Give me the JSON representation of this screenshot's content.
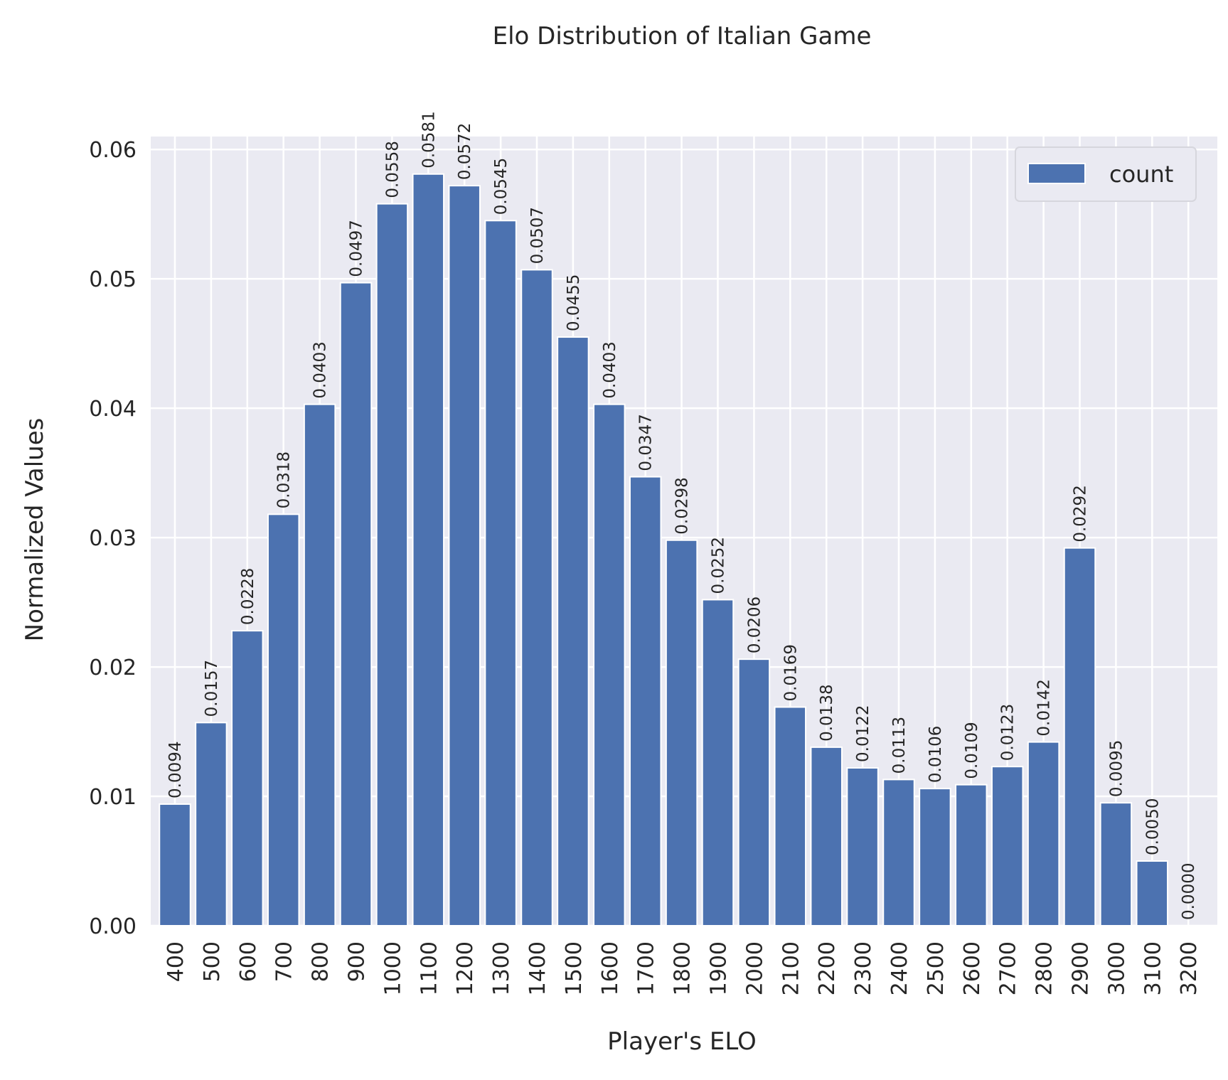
{
  "chart_data": {
    "type": "bar",
    "title": "Elo Distribution of Italian Game",
    "xlabel": "Player's ELO",
    "ylabel": "Normalized Values",
    "categories": [
      "400",
      "500",
      "600",
      "700",
      "800",
      "900",
      "1000",
      "1100",
      "1200",
      "1300",
      "1400",
      "1500",
      "1600",
      "1700",
      "1800",
      "1900",
      "2000",
      "2100",
      "2200",
      "2300",
      "2400",
      "2500",
      "2600",
      "2700",
      "2800",
      "2900",
      "3000",
      "3100",
      "3200"
    ],
    "series": [
      {
        "name": "count",
        "values": [
          0.0094,
          0.0157,
          0.0228,
          0.0318,
          0.0403,
          0.0497,
          0.0558,
          0.0581,
          0.0572,
          0.0545,
          0.0507,
          0.0455,
          0.0403,
          0.0347,
          0.0298,
          0.0252,
          0.0206,
          0.0169,
          0.0138,
          0.0122,
          0.0113,
          0.0106,
          0.0109,
          0.0123,
          0.0142,
          0.0292,
          0.0095,
          0.005,
          0.0
        ],
        "labels": [
          "0.0094",
          "0.0157",
          "0.0228",
          "0.0318",
          "0.0403",
          "0.0497",
          "0.0558",
          "0.0581",
          "0.0572",
          "0.0545",
          "0.0507",
          "0.0455",
          "0.0403",
          "0.0347",
          "0.0298",
          "0.0252",
          "0.0206",
          "0.0169",
          "0.0138",
          "0.0122",
          "0.0113",
          "0.0106",
          "0.0109",
          "0.0123",
          "0.0142",
          "0.0292",
          "0.0095",
          "0.0050",
          "0.0000"
        ]
      }
    ],
    "ylim": [
      0,
      0.061
    ],
    "yticks": [
      0.0,
      0.01,
      0.02,
      0.03,
      0.04,
      0.05,
      0.06
    ],
    "ytick_labels": [
      "0.00",
      "0.01",
      "0.02",
      "0.03",
      "0.04",
      "0.05",
      "0.06"
    ],
    "grid": true,
    "legend": "top-right",
    "colors": {
      "bar": "#4c72b0",
      "plot_bg": "#eaeaf2",
      "grid": "#ffffff",
      "text": "#262626"
    }
  }
}
